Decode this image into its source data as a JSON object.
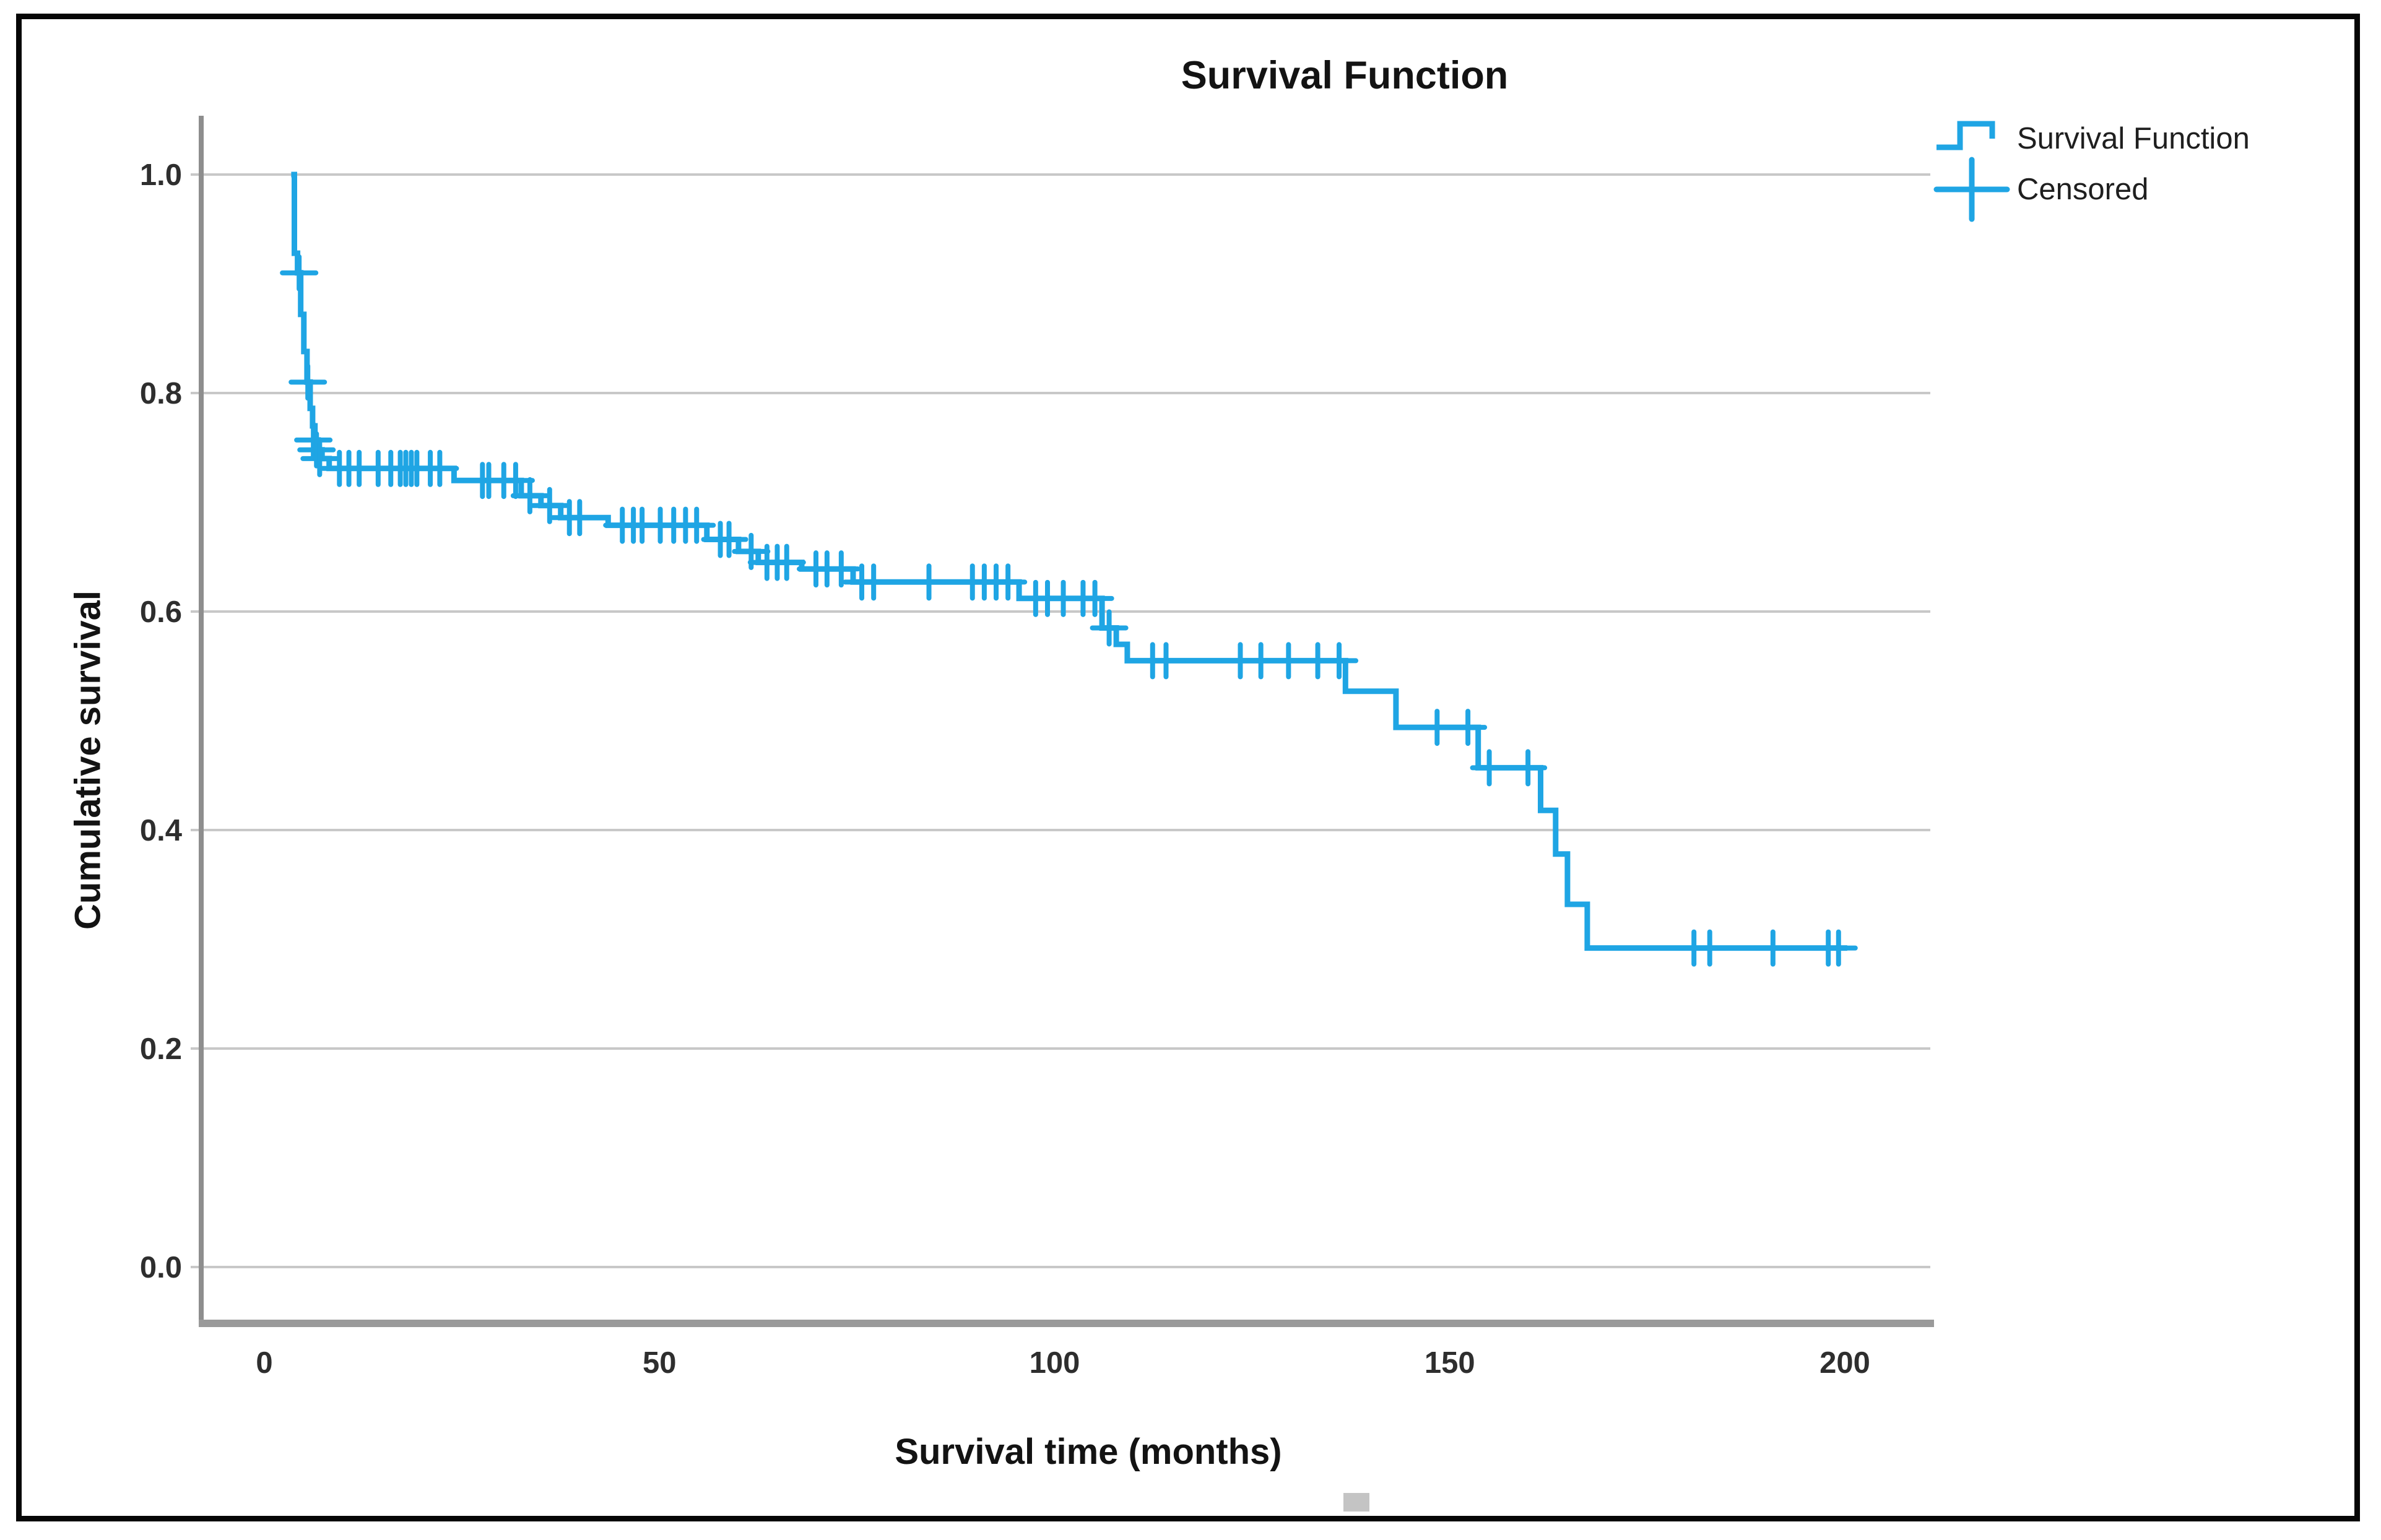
{
  "figure": {
    "background": "#ffffff",
    "border_color": "#060606"
  },
  "chart_data": {
    "type": "line",
    "subtype": "kaplan_meier_step_function",
    "title": "Survival Function",
    "xlabel": "Survival time (months)",
    "ylabel": "Cumulative survival",
    "xlim": [
      0,
      200
    ],
    "ylim": [
      0.0,
      1.0
    ],
    "grid": "horizontal",
    "xticks": {
      "values": [
        0,
        50,
        100,
        150,
        200
      ],
      "labels": [
        "0",
        "50",
        "100",
        "150",
        "200"
      ]
    },
    "yticks": {
      "values": [
        0.0,
        0.2,
        0.4,
        0.6,
        0.8,
        1.0
      ],
      "labels": [
        "0.0",
        "0.2",
        "0.4",
        "0.6",
        "0.8",
        "1.0"
      ]
    },
    "legend": {
      "position": "top-right",
      "entries": [
        {
          "label": "Survival Function",
          "symbol": "step-line"
        },
        {
          "label": "Censored",
          "symbol": "plus"
        }
      ]
    },
    "colors": {
      "series": "#1fa5e4",
      "grid": "#c8c8c8",
      "y_axis": "#8e8e8e",
      "x_axis": "#9a9a9a",
      "title_text": "#131313",
      "tick_text": "#2e2e2e"
    },
    "series": [
      {
        "name": "Survival Function",
        "points": [
          [
            3.4,
            1.0
          ],
          [
            3.8,
            0.928
          ],
          [
            4.2,
            0.91
          ],
          [
            4.6,
            0.872
          ],
          [
            5.0,
            0.838
          ],
          [
            5.4,
            0.81
          ],
          [
            5.8,
            0.786
          ],
          [
            6.1,
            0.77
          ],
          [
            6.4,
            0.757
          ],
          [
            6.8,
            0.748
          ],
          [
            7.3,
            0.74
          ],
          [
            8.2,
            0.731
          ],
          [
            24.0,
            0.72
          ],
          [
            32.5,
            0.706
          ],
          [
            35.0,
            0.697
          ],
          [
            37.5,
            0.686
          ],
          [
            43.5,
            0.679
          ],
          [
            56.0,
            0.666
          ],
          [
            60.0,
            0.655
          ],
          [
            62.5,
            0.645
          ],
          [
            68.0,
            0.639
          ],
          [
            74.5,
            0.627
          ],
          [
            95.5,
            0.612
          ],
          [
            106.0,
            0.585
          ],
          [
            107.8,
            0.57
          ],
          [
            109.2,
            0.555
          ],
          [
            136.8,
            0.527
          ],
          [
            143.2,
            0.494
          ],
          [
            153.6,
            0.457
          ],
          [
            161.5,
            0.418
          ],
          [
            163.4,
            0.378
          ],
          [
            164.9,
            0.332
          ],
          [
            167.4,
            0.292
          ],
          [
            200.3,
            0.292
          ]
        ]
      }
    ],
    "censored": [
      [
        4.4,
        0.91
      ],
      [
        5.5,
        0.81
      ],
      [
        6.2,
        0.757
      ],
      [
        6.6,
        0.748
      ],
      [
        7.0,
        0.74
      ],
      [
        9.5,
        0.731
      ],
      [
        10.7,
        0.731
      ],
      [
        12.0,
        0.731
      ],
      [
        14.4,
        0.731
      ],
      [
        16.0,
        0.731
      ],
      [
        17.2,
        0.731
      ],
      [
        17.9,
        0.731
      ],
      [
        18.6,
        0.731
      ],
      [
        19.3,
        0.731
      ],
      [
        21.0,
        0.731
      ],
      [
        22.2,
        0.731
      ],
      [
        27.6,
        0.72
      ],
      [
        28.4,
        0.72
      ],
      [
        30.3,
        0.72
      ],
      [
        31.8,
        0.72
      ],
      [
        33.6,
        0.706
      ],
      [
        36.1,
        0.697
      ],
      [
        38.6,
        0.686
      ],
      [
        39.9,
        0.686
      ],
      [
        45.3,
        0.679
      ],
      [
        46.7,
        0.679
      ],
      [
        47.8,
        0.679
      ],
      [
        50.1,
        0.679
      ],
      [
        51.8,
        0.679
      ],
      [
        53.3,
        0.679
      ],
      [
        54.7,
        0.679
      ],
      [
        57.7,
        0.666
      ],
      [
        58.8,
        0.666
      ],
      [
        61.6,
        0.655
      ],
      [
        63.6,
        0.645
      ],
      [
        64.9,
        0.645
      ],
      [
        66.1,
        0.645
      ],
      [
        69.8,
        0.639
      ],
      [
        71.2,
        0.639
      ],
      [
        73.0,
        0.639
      ],
      [
        75.6,
        0.627
      ],
      [
        77.1,
        0.627
      ],
      [
        84.1,
        0.627
      ],
      [
        89.6,
        0.627
      ],
      [
        91.1,
        0.627
      ],
      [
        92.6,
        0.627
      ],
      [
        94.1,
        0.627
      ],
      [
        97.6,
        0.612
      ],
      [
        99.1,
        0.612
      ],
      [
        101.1,
        0.612
      ],
      [
        103.6,
        0.612
      ],
      [
        105.1,
        0.612
      ],
      [
        106.9,
        0.585
      ],
      [
        112.4,
        0.555
      ],
      [
        114.1,
        0.555
      ],
      [
        123.5,
        0.555
      ],
      [
        126.1,
        0.555
      ],
      [
        129.6,
        0.555
      ],
      [
        133.3,
        0.555
      ],
      [
        136.0,
        0.555
      ],
      [
        148.4,
        0.494
      ],
      [
        152.3,
        0.494
      ],
      [
        155.0,
        0.457
      ],
      [
        159.9,
        0.457
      ],
      [
        180.9,
        0.292
      ],
      [
        182.9,
        0.292
      ],
      [
        190.9,
        0.292
      ],
      [
        197.9,
        0.292
      ],
      [
        199.2,
        0.292
      ]
    ]
  }
}
